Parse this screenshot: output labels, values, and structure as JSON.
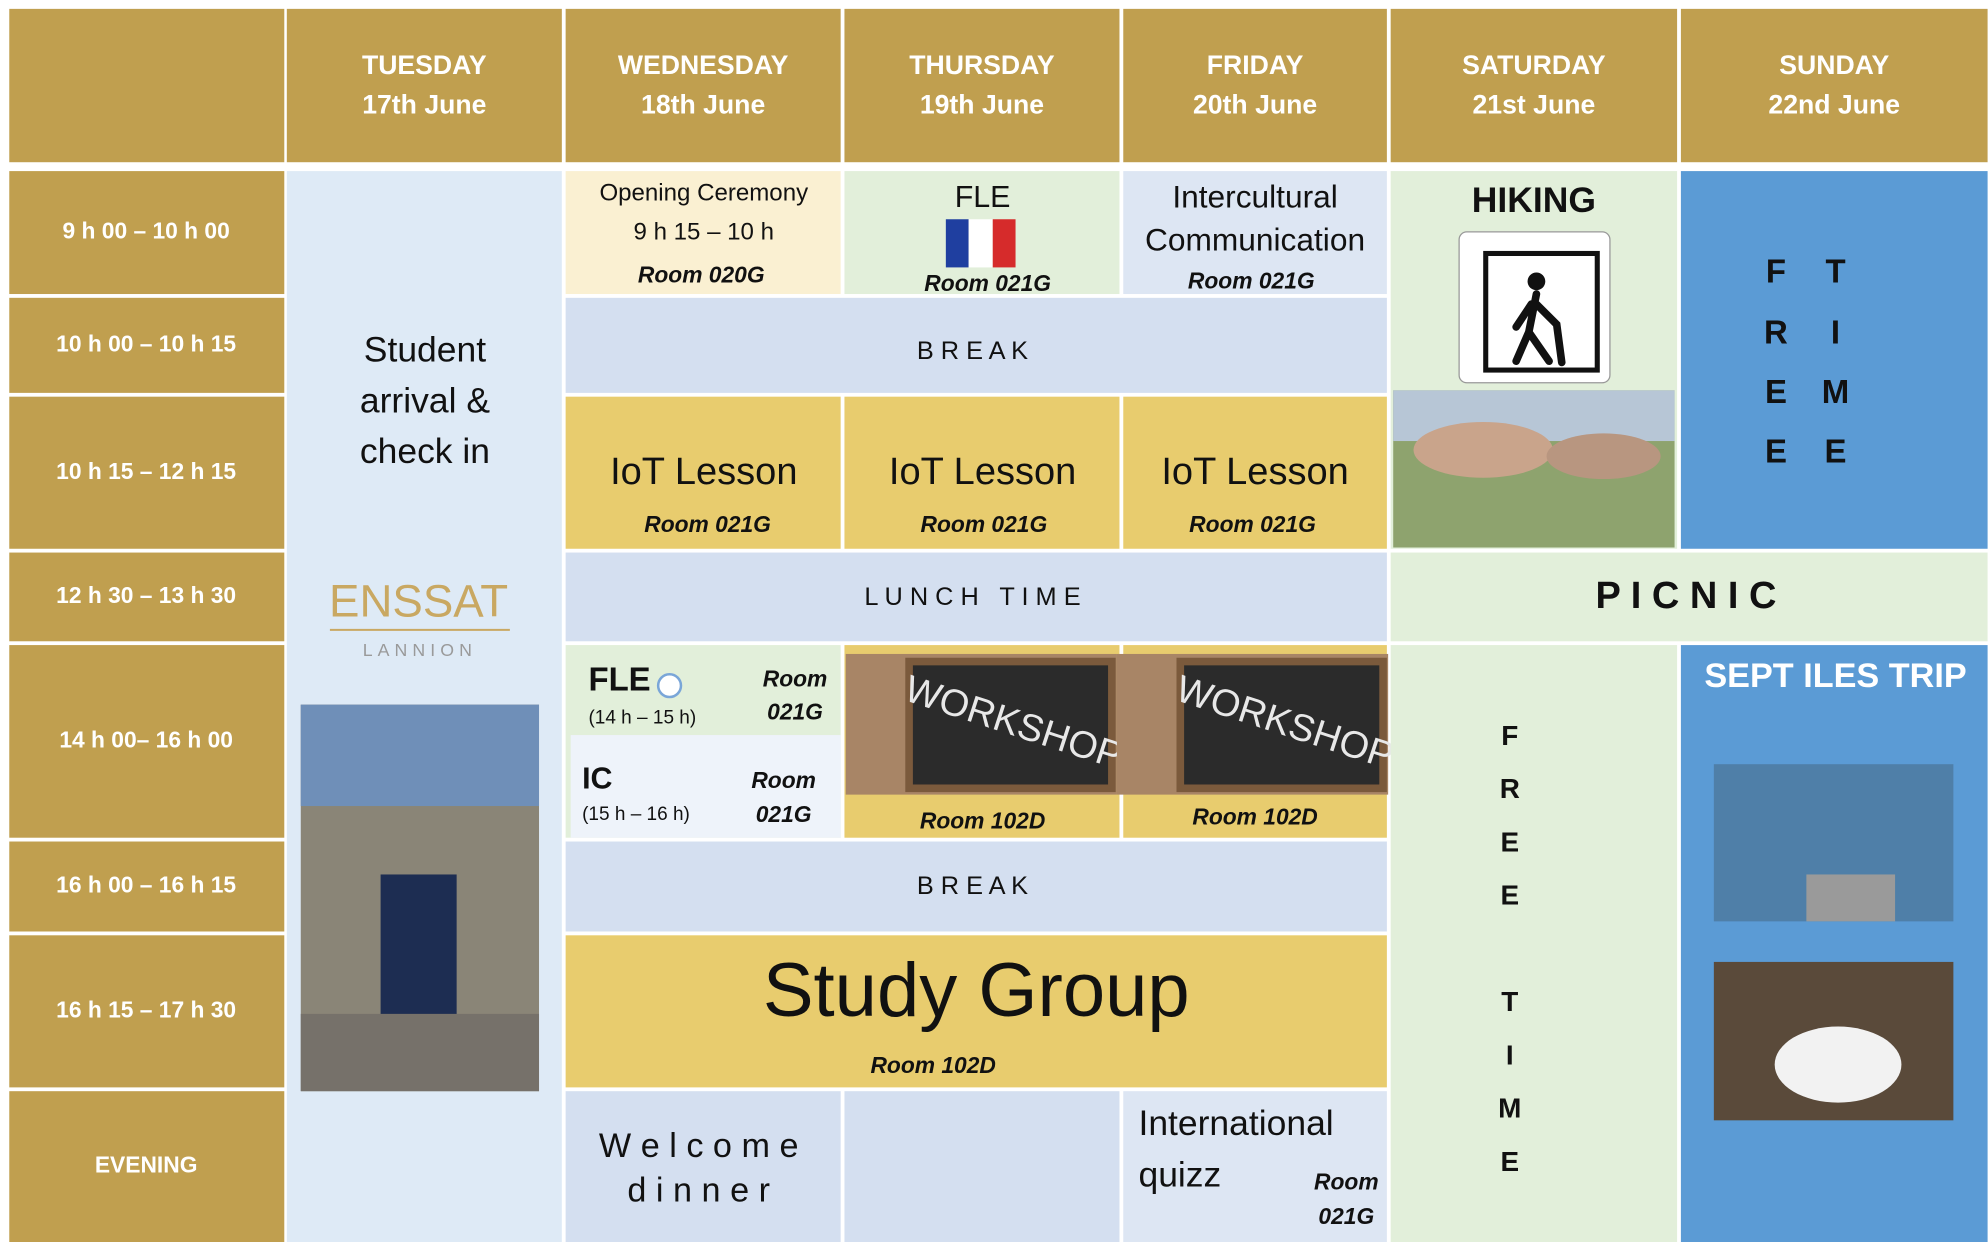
{
  "header": {
    "days": [
      {
        "name": "TUESDAY",
        "date": "17th June"
      },
      {
        "name": "WEDNESDAY",
        "date": "18th June"
      },
      {
        "name": "THURSDAY",
        "date": "19th June"
      },
      {
        "name": "FRIDAY",
        "date": "20th June"
      },
      {
        "name": "SATURDAY",
        "date": "21st June"
      },
      {
        "name": "SUNDAY",
        "date": "22nd June"
      }
    ]
  },
  "time_slots": [
    "9 h 00 – 10 h 00",
    "10 h 00 – 10 h 15",
    "10 h 15 – 12 h 15",
    "12 h 30 – 13 h 30",
    "14 h 00– 16 h 00",
    "16 h 00 – 16 h 15",
    "16 h 15 – 17 h 30",
    "EVENING"
  ],
  "tuesday": {
    "lines": [
      "Student",
      "arrival &",
      "check in"
    ],
    "logo": {
      "name": "ENSSAT",
      "city": "LANNION"
    }
  },
  "wednesday_opening": {
    "title": "Opening Ceremony",
    "time": "9 h 15 – 10 h",
    "room": "Room 020G"
  },
  "thursday_fle": {
    "title": "FLE",
    "room": "Room 021G"
  },
  "friday_intercultural": {
    "lines": [
      "Intercultural",
      "Communication"
    ],
    "room": "Room 021G"
  },
  "saturday": {
    "hiking": "HIKING",
    "free_time": [
      "F",
      "R",
      "E",
      "E",
      "T",
      "I",
      "M",
      "E"
    ]
  },
  "sunday": {
    "free_time": [
      [
        "F",
        "R",
        "E",
        "E"
      ],
      [
        "T",
        "I",
        "M",
        "E"
      ]
    ],
    "trip": "SEPT ILES TRIP"
  },
  "breaks": [
    "B R E A K",
    "B R E A K"
  ],
  "lunch": "L U N C H   T I M E",
  "picnic": "P I C N I C",
  "iot_lessons": [
    {
      "title": "IoT Lesson",
      "room": "Room 021G"
    },
    {
      "title": "IoT Lesson",
      "room": "Room 021G"
    },
    {
      "title": "IoT Lesson",
      "room": "Room 021G"
    }
  ],
  "afternoon_fle": {
    "title": "FLE",
    "time": "(14 h – 15 h)",
    "room": [
      "Room",
      "021G"
    ]
  },
  "afternoon_ic": {
    "title": "IC",
    "time": "(15 h – 16 h)",
    "room": [
      "Room",
      "021G"
    ]
  },
  "workshops": [
    {
      "image_text": "WORKSHOP",
      "room": "Room 102D"
    },
    {
      "image_text": "WORKSHOP",
      "room": "Room 102D"
    }
  ],
  "study_group": {
    "title": "Study Group",
    "room": "Room 102D"
  },
  "evening_welcome": {
    "lines": [
      "W e l c o m e",
      "d i n n e r"
    ]
  },
  "evening_quiz": {
    "lines": [
      "International",
      "quizz"
    ],
    "room": [
      "Room",
      "021G"
    ]
  }
}
